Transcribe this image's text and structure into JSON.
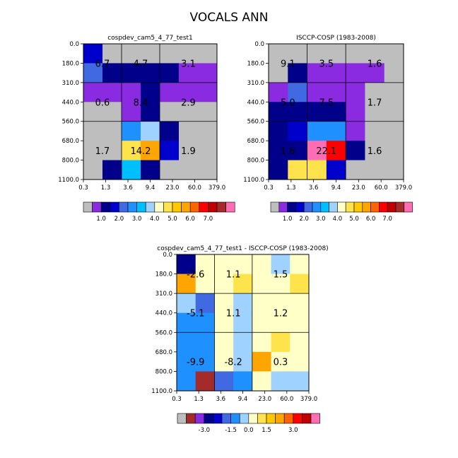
{
  "title": "VOCALS ANN",
  "colors": {
    "missing": "#bebebe",
    "palette_abs": [
      "#8a2be2",
      "#00008b",
      "#0000cd",
      "#4169e1",
      "#1e90ff",
      "#00bfff",
      "#a0d2ff",
      "#ffffc8",
      "#ffe34d",
      "#ffc800",
      "#ffa500",
      "#ff6400",
      "#ff0000",
      "#c00000",
      "#a52a2a",
      "#ff6eb4"
    ],
    "palette_diff": [
      "#a52a2a",
      "#8a2be2",
      "#00008b",
      "#0000cd",
      "#4169e1",
      "#1e90ff",
      "#a0d2ff",
      "#ffffc8",
      "#ffe34d",
      "#ffc800",
      "#ffa500",
      "#ff6400",
      "#ff0000",
      "#c00000",
      "#ff6eb4"
    ]
  },
  "chart_data": [
    {
      "type": "heatmap",
      "title": "cospdev_cam5_4_77_test1",
      "x_ticks": [
        "0.3",
        "1.3",
        "3.6",
        "9.4",
        "23.0",
        "60.0",
        "379.0"
      ],
      "y_ticks": [
        "0.0",
        "180.0",
        "310.0",
        "440.0",
        "560.0",
        "680.0",
        "800.0",
        "1100.0"
      ],
      "grid": [
        [
          2,
          7,
          7,
          7,
          7,
          7,
          7
        ],
        [
          3,
          1,
          1,
          1,
          1,
          0,
          0
        ],
        [
          0,
          0,
          0,
          1,
          0,
          0,
          0
        ],
        [
          7,
          7,
          0,
          1,
          7,
          7,
          7
        ],
        [
          7,
          7,
          4,
          6,
          1,
          7,
          7
        ],
        [
          7,
          7,
          8,
          10,
          2,
          7,
          7
        ],
        [
          7,
          1,
          5,
          1,
          7,
          7,
          7
        ]
      ],
      "block_labels": [
        {
          "text": "6.7",
          "col": 0,
          "row": 1
        },
        {
          "text": "4.7",
          "col": 1,
          "row": 1
        },
        {
          "text": "3.1",
          "col": 2,
          "row": 1
        },
        {
          "text": "0.6",
          "col": 0,
          "row": 4
        },
        {
          "text": "8.4",
          "col": 1,
          "row": 4
        },
        {
          "text": "2.9",
          "col": 2,
          "row": 4
        },
        {
          "text": "1.7",
          "col": 0,
          "row": 6
        },
        {
          "text": "14.2",
          "col": 1,
          "row": 6
        },
        {
          "text": "1.9",
          "col": 2,
          "row": 6
        }
      ],
      "colorbar": {
        "palette": "abs",
        "labels": [
          "1.0",
          "2.0",
          "3.0",
          "4.0",
          "5.0",
          "6.0",
          "7.0"
        ]
      }
    },
    {
      "type": "heatmap",
      "title": "ISCCP-COSP (1983-2008)",
      "x_ticks": [
        "0.3",
        "1.3",
        "3.6",
        "9.4",
        "23.0",
        "60.0",
        "379.0"
      ],
      "y_ticks": [
        "0.0",
        "180.0",
        "310.0",
        "440.0",
        "560.0",
        "680.0",
        "800.0",
        "1100.0"
      ],
      "grid": [
        [
          7,
          7,
          7,
          7,
          7,
          7,
          7
        ],
        [
          7,
          1,
          0,
          0,
          0,
          0,
          7
        ],
        [
          0,
          3,
          0,
          0,
          0,
          7,
          7
        ],
        [
          1,
          1,
          1,
          1,
          0,
          7,
          7
        ],
        [
          1,
          2,
          4,
          4,
          0,
          7,
          7
        ],
        [
          1,
          1,
          15,
          12,
          1,
          7,
          7
        ],
        [
          1,
          8,
          8,
          2,
          7,
          7,
          7
        ]
      ],
      "block_labels": [
        {
          "text": "9.1",
          "col": 0,
          "row": 1
        },
        {
          "text": "3.5",
          "col": 1,
          "row": 1
        },
        {
          "text": "1.6",
          "col": 2,
          "row": 1
        },
        {
          "text": "5.0",
          "col": 0,
          "row": 4
        },
        {
          "text": "7.5",
          "col": 1,
          "row": 4
        },
        {
          "text": "1.7",
          "col": 2,
          "row": 4
        },
        {
          "text": "1.6",
          "col": 0,
          "row": 6
        },
        {
          "text": "22.1",
          "col": 1,
          "row": 6
        },
        {
          "text": "1.6",
          "col": 2,
          "row": 6
        }
      ],
      "colorbar": {
        "palette": "abs",
        "labels": [
          "1.0",
          "2.0",
          "3.0",
          "4.0",
          "5.0",
          "6.0",
          "7.0"
        ]
      }
    },
    {
      "type": "heatmap",
      "title": "cospdev_cam5_4_77_test1 - ISCCP-COSP (1983-2008)",
      "x_ticks": [
        "0.3",
        "1.3",
        "3.6",
        "9.4",
        "23.0",
        "60.0",
        "379.0"
      ],
      "y_ticks": [
        "0.0",
        "180.0",
        "310.0",
        "440.0",
        "560.0",
        "680.0",
        "800.0",
        "1100.0"
      ],
      "grid": [
        [
          2,
          7,
          7,
          7,
          7,
          6,
          7
        ],
        [
          10,
          7,
          7,
          8,
          7,
          7,
          8
        ],
        [
          6,
          4,
          7,
          6,
          7,
          7,
          7
        ],
        [
          5,
          5,
          7,
          6,
          7,
          7,
          7
        ],
        [
          5,
          5,
          7,
          6,
          7,
          8,
          7
        ],
        [
          5,
          5,
          7,
          6,
          10,
          7,
          7
        ],
        [
          5,
          0,
          4,
          5,
          7,
          6,
          6
        ]
      ],
      "block_labels": [
        {
          "text": "-2.6",
          "col": 0,
          "row": 1
        },
        {
          "text": "1.1",
          "col": 1,
          "row": 1
        },
        {
          "text": "1.5",
          "col": 2,
          "row": 1
        },
        {
          "text": "-5.1",
          "col": 0,
          "row": 4
        },
        {
          "text": "1.1",
          "col": 1,
          "row": 4
        },
        {
          "text": "1.2",
          "col": 2,
          "row": 4
        },
        {
          "text": "-9.9",
          "col": 0,
          "row": 6
        },
        {
          "text": "-8.2",
          "col": 1,
          "row": 6
        },
        {
          "text": "0.3",
          "col": 2,
          "row": 6
        }
      ],
      "colorbar": {
        "palette": "diff",
        "labels": [
          "-3.0",
          "-1.5",
          "0.0",
          "1.5",
          "3.0"
        ]
      }
    }
  ]
}
